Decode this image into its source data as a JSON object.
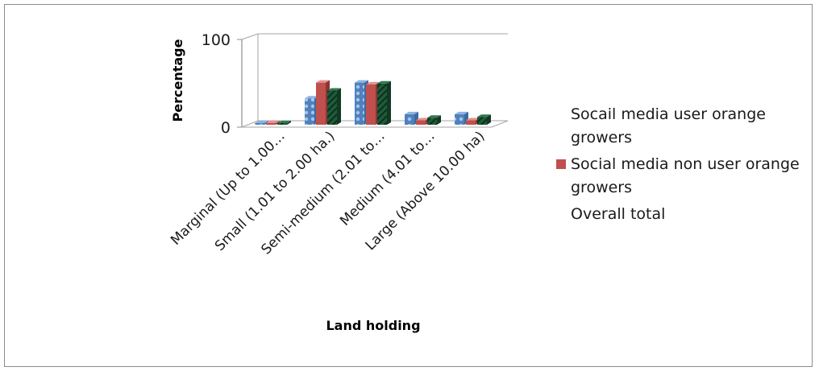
{
  "chart_data": {
    "type": "bar",
    "title": "",
    "xlabel": "Land holding",
    "ylabel": "Percentage",
    "ylim": [
      0,
      100
    ],
    "yticks": [
      "0",
      "100"
    ],
    "categories": [
      "Marginal (Up to 1.00…",
      "Small (1.01 to 2.00 ha.)",
      "Semi-medium (2.01 to…",
      "Medium (4.01 to…",
      "Large (Above 10.00 ha)"
    ],
    "series": [
      {
        "name": "Socail media user orange growers",
        "color": "#4f81bd",
        "values": [
          1,
          30,
          48,
          12,
          12
        ]
      },
      {
        "name": "Social media non user orange growers",
        "color": "#c0504d",
        "values": [
          1,
          48,
          46,
          5,
          5
        ]
      },
      {
        "name": "Overall total",
        "color": "#1e5b3a",
        "values": [
          1,
          39,
          47,
          8,
          9
        ]
      }
    ],
    "grid": false,
    "legend_position": "right"
  }
}
